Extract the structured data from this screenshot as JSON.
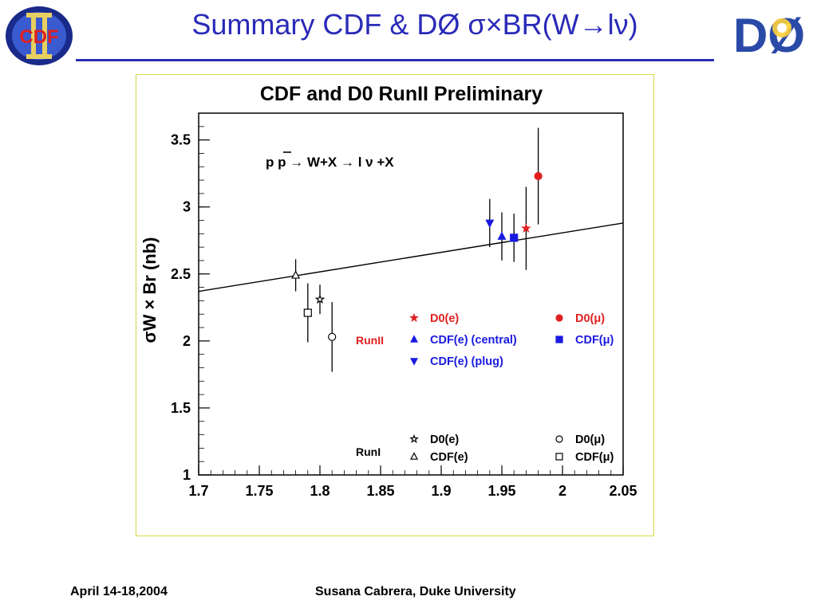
{
  "slide": {
    "title": "Summary CDF & DØ σ×BR(W→lν)",
    "logo_left": "CDF",
    "logo_right": "DØ"
  },
  "footer": {
    "date": "April 14-18,2004",
    "author": "Susana Cabrera, Duke University"
  },
  "chart_data": {
    "type": "scatter",
    "title": "CDF and D0 RunII Preliminary",
    "annotation": "p p → W+X → l ν +X",
    "xlabel": "",
    "ylabel": "σW × Br (nb)",
    "xlim": [
      1.7,
      2.05
    ],
    "ylim": [
      1.0,
      3.7
    ],
    "x_ticks": [
      "1.7",
      "1.75",
      "1.8",
      "1.85",
      "1.9",
      "1.95",
      "2",
      "2.05"
    ],
    "y_ticks": [
      "1",
      "1.5",
      "2",
      "2.5",
      "3",
      "3.5"
    ],
    "fit_line": {
      "x": [
        1.7,
        2.05
      ],
      "y": [
        2.37,
        2.88
      ]
    },
    "legend": {
      "run2_label": "RunII",
      "run1_label": "RunI",
      "entries": [
        {
          "label": "D0(e)",
          "group": "RunII",
          "marker": "star-filled",
          "color": "#e02020"
        },
        {
          "label": "D0(μ)",
          "group": "RunII",
          "marker": "circle-filled",
          "color": "#e02020"
        },
        {
          "label": "CDF(e) (central)",
          "group": "RunII",
          "marker": "triangle-up-filled",
          "color": "#1a1ae0"
        },
        {
          "label": "CDF(μ)",
          "group": "RunII",
          "marker": "square-filled",
          "color": "#1a1ae0"
        },
        {
          "label": "CDF(e) (plug)",
          "group": "RunII",
          "marker": "triangle-down-filled",
          "color": "#1a1ae0"
        },
        {
          "label": "D0(e)",
          "group": "RunI",
          "marker": "star-open",
          "color": "#000000"
        },
        {
          "label": "D0(μ)",
          "group": "RunI",
          "marker": "circle-open",
          "color": "#000000"
        },
        {
          "label": "CDF(e)",
          "group": "RunI",
          "marker": "triangle-up-open",
          "color": "#000000"
        },
        {
          "label": "CDF(μ)",
          "group": "RunI",
          "marker": "square-open",
          "color": "#000000"
        }
      ]
    },
    "points": [
      {
        "series": "CDF(e) RunI",
        "x": 1.78,
        "y": 2.49,
        "err": 0.12,
        "marker": "triangle-up-open",
        "color": "#000000"
      },
      {
        "series": "CDF(μ) RunI",
        "x": 1.79,
        "y": 2.21,
        "err": 0.22,
        "marker": "square-open",
        "color": "#000000"
      },
      {
        "series": "D0(e) RunI",
        "x": 1.8,
        "y": 2.31,
        "err": 0.11,
        "marker": "star-open",
        "color": "#000000"
      },
      {
        "series": "D0(μ) RunI",
        "x": 1.81,
        "y": 2.03,
        "err": 0.26,
        "marker": "circle-open",
        "color": "#000000"
      },
      {
        "series": "CDF(e) (plug) RunII",
        "x": 1.94,
        "y": 2.88,
        "err": 0.18,
        "marker": "triangle-down-filled",
        "color": "#1a1ae0"
      },
      {
        "series": "CDF(e) (central) RunII",
        "x": 1.95,
        "y": 2.78,
        "err": 0.18,
        "marker": "triangle-up-filled",
        "color": "#1a1ae0"
      },
      {
        "series": "CDF(μ) RunII",
        "x": 1.96,
        "y": 2.77,
        "err": 0.18,
        "marker": "square-filled",
        "color": "#1a1ae0"
      },
      {
        "series": "D0(e) RunII",
        "x": 1.97,
        "y": 2.84,
        "err": 0.31,
        "marker": "star-filled",
        "color": "#e02020"
      },
      {
        "series": "D0(μ) RunII",
        "x": 1.98,
        "y": 3.23,
        "err": 0.36,
        "marker": "circle-filled",
        "color": "#e02020"
      }
    ]
  }
}
